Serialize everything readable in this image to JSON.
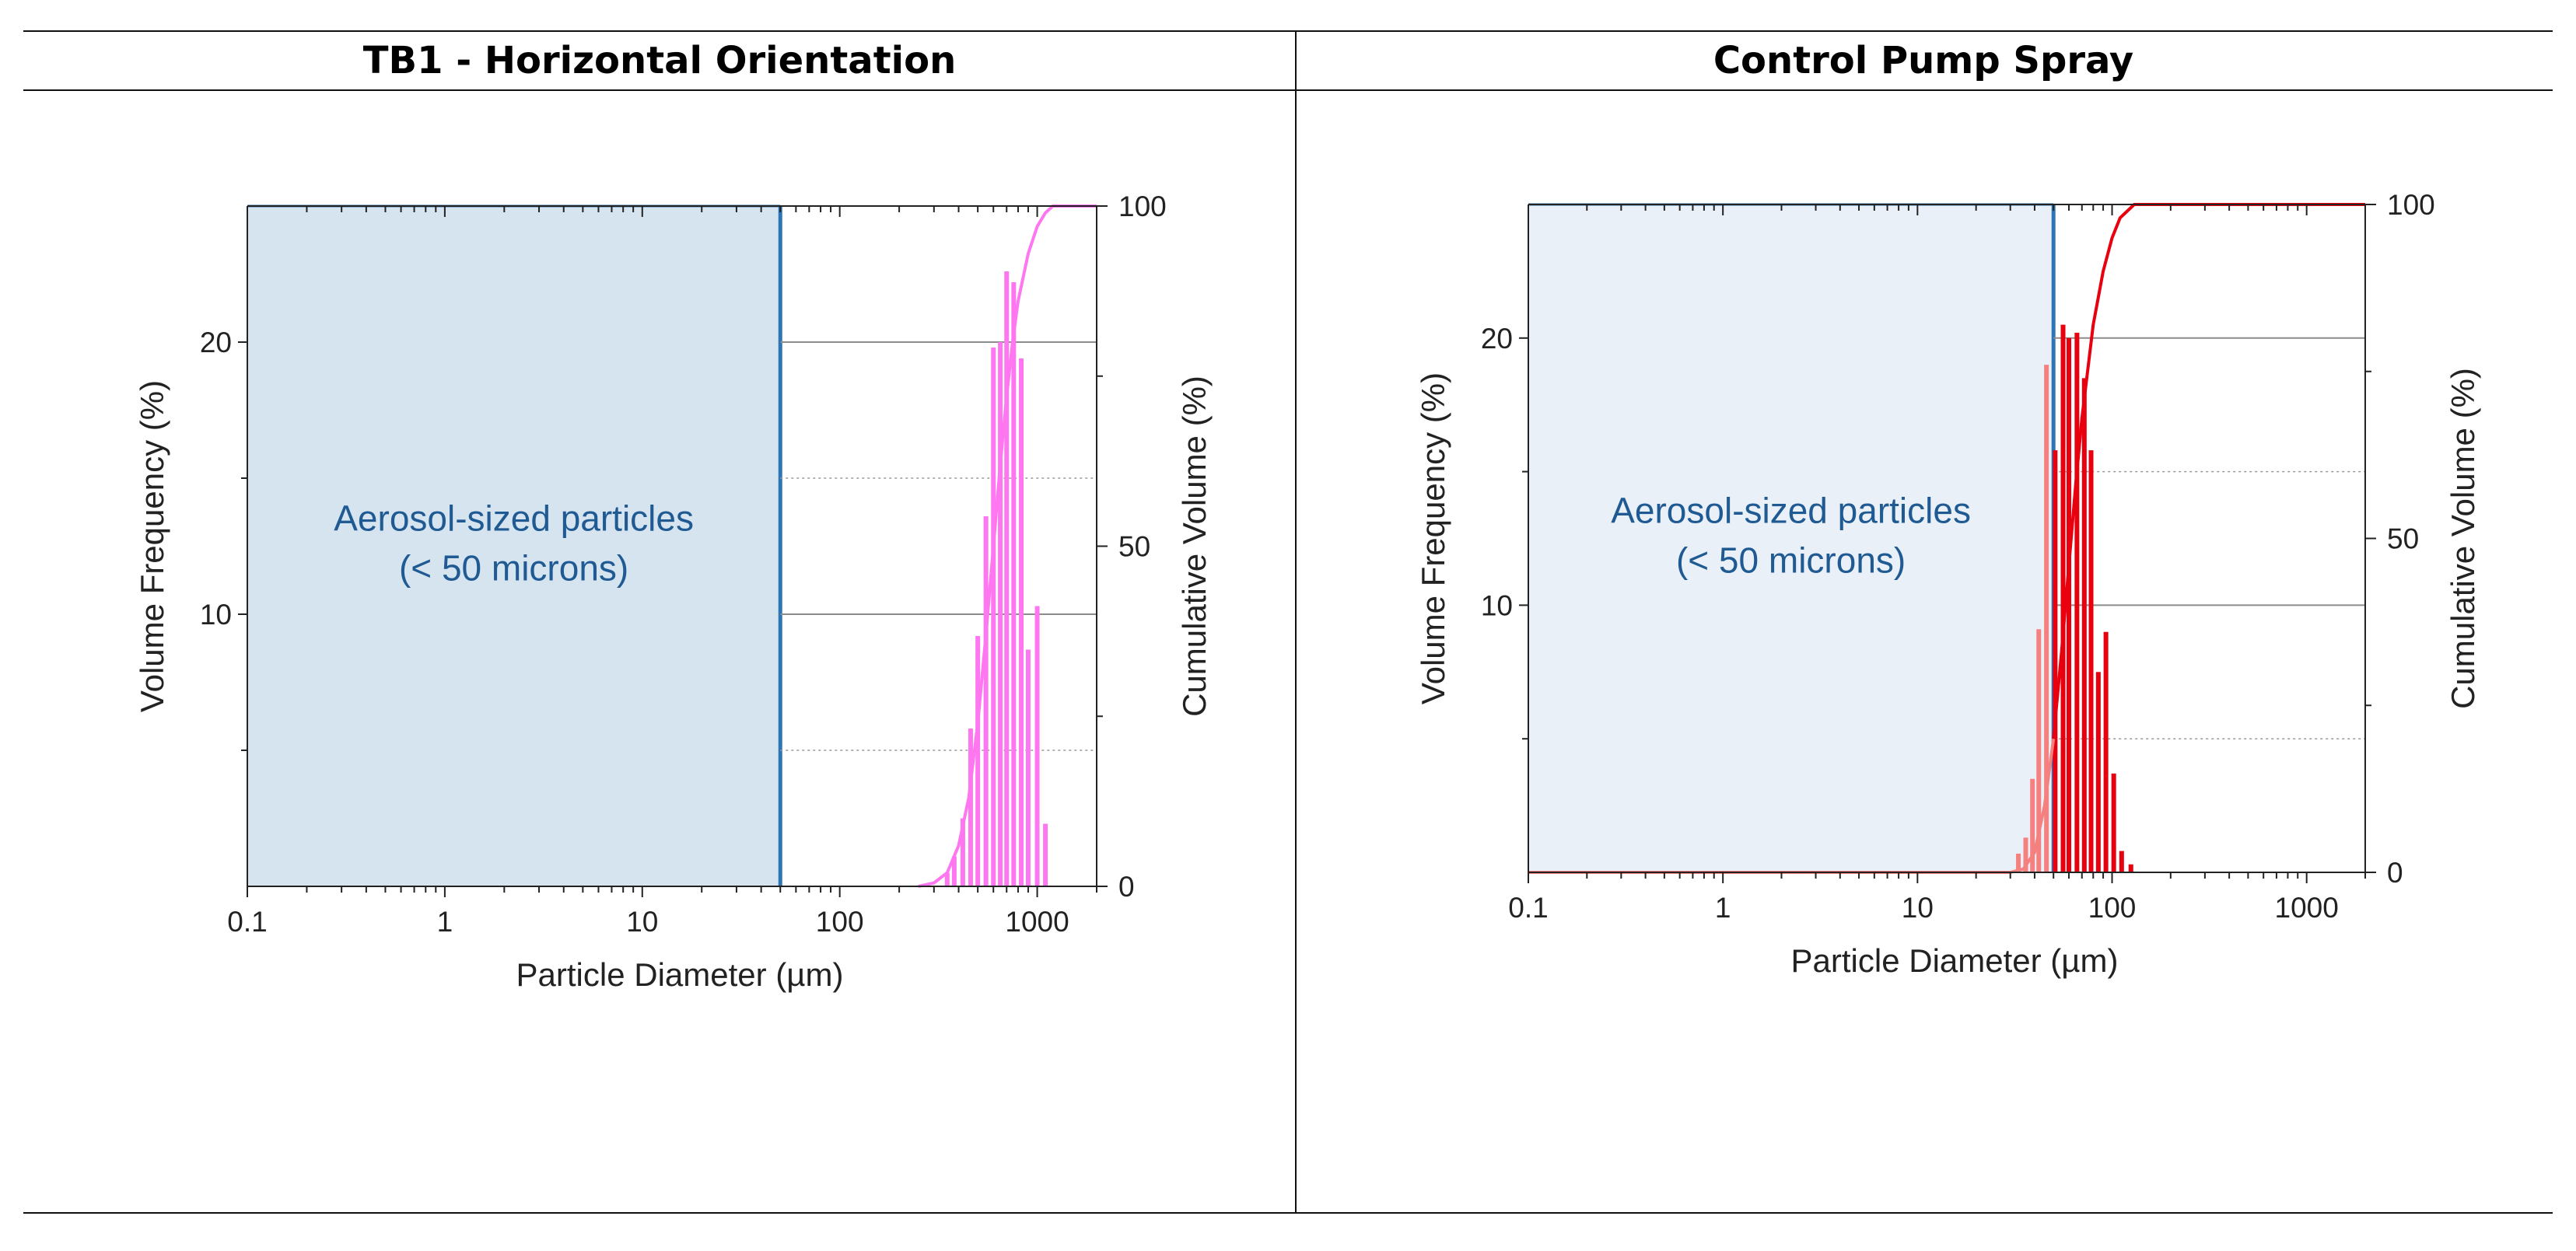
{
  "table": {
    "headers": [
      "TB1 - Horizontal Orientation",
      "Control Pump Spray"
    ]
  },
  "chart_data": [
    {
      "type": "bar",
      "title": "TB1 - Horizontal Orientation",
      "xlabel": "Particle Diameter (µm)",
      "ylabel": "Volume Frequency (%)",
      "y2label": "Cumulative Volume (%)",
      "xscale": "log",
      "xlim": [
        0.1,
        2000
      ],
      "ylim": [
        0,
        25
      ],
      "y2lim": [
        0,
        100
      ],
      "xticks": [
        0.1,
        1,
        10,
        100,
        1000
      ],
      "xtick_labels": [
        "0.1",
        "1",
        "10",
        "100",
        "1000"
      ],
      "yticks": [
        10,
        20
      ],
      "yticks_minor": [
        5,
        15
      ],
      "y2ticks": [
        0,
        50,
        100
      ],
      "y2tick_labels": [
        "0",
        "50",
        "100"
      ],
      "shaded_region": {
        "x_from": 0.1,
        "x_to": 50,
        "color": "#d6e4f0",
        "edge": "#2e75b6",
        "label_lines": [
          "Aerosol-sized particles",
          "(< 50 microns)"
        ]
      },
      "series": [
        {
          "name": "Volume Frequency",
          "color": "#ff77f0",
          "x": [
            350,
            380,
            420,
            460,
            500,
            550,
            600,
            650,
            700,
            760,
            830,
            900,
            1000,
            1100
          ],
          "values": [
            0.5,
            1.1,
            2.5,
            5.8,
            9.2,
            13.6,
            19.8,
            20.0,
            22.6,
            22.2,
            19.4,
            8.7,
            10.3,
            2.3
          ]
        },
        {
          "name": "Cumulative Volume",
          "axis": "right",
          "color": "#ff77f0",
          "x": [
            250,
            300,
            350,
            400,
            450,
            500,
            550,
            600,
            650,
            700,
            750,
            800,
            900,
            1000,
            1100,
            1200,
            1500,
            2000
          ],
          "values": [
            0,
            0.5,
            2,
            6,
            13,
            24,
            37,
            50,
            62,
            72,
            80,
            86,
            93,
            97,
            99,
            100,
            100,
            100
          ]
        }
      ]
    },
    {
      "type": "bar",
      "title": "Control Pump Spray",
      "xlabel": "Particle Diameter (µm)",
      "ylabel": "Volume Frequency (%)",
      "y2label": "Cumulative Volume (%)",
      "xscale": "log",
      "xlim": [
        0.1,
        2000
      ],
      "ylim": [
        0,
        25
      ],
      "y2lim": [
        0,
        100
      ],
      "xticks": [
        0.1,
        1,
        10,
        100,
        1000
      ],
      "xtick_labels": [
        "0.1",
        "1",
        "10",
        "100",
        "1000"
      ],
      "yticks": [
        10,
        20
      ],
      "yticks_minor": [
        5,
        15
      ],
      "y2ticks": [
        0,
        50,
        100
      ],
      "y2tick_labels": [
        "0",
        "50",
        "100"
      ],
      "shaded_region": {
        "x_from": 0.1,
        "x_to": 50,
        "color": "#eaf0f8",
        "edge": "#2e75b6",
        "label_lines": [
          "Aerosol-sized particles",
          "(< 50 microns)"
        ]
      },
      "series": [
        {
          "name": "Volume Frequency",
          "color": "#e8000f",
          "x": [
            33,
            36,
            39,
            42,
            46,
            51,
            56,
            60,
            66,
            72,
            78,
            85,
            93,
            102,
            112,
            125
          ],
          "values": [
            0.7,
            1.3,
            3.5,
            9.1,
            19.0,
            15.8,
            20.5,
            20.0,
            20.2,
            18.5,
            15.8,
            7.5,
            9.0,
            3.7,
            0.8,
            0.3
          ],
          "lightened_below": 50,
          "light_color": "#f4807f"
        },
        {
          "name": "Cumulative Volume",
          "axis": "right",
          "color": "#e8000f",
          "x": [
            0.1,
            20,
            30,
            35,
            40,
            45,
            50,
            55,
            60,
            65,
            70,
            80,
            90,
            100,
            110,
            130,
            150,
            200,
            500,
            2000
          ],
          "values": [
            0,
            0,
            0,
            0.5,
            3,
            10,
            20,
            33,
            46,
            58,
            68,
            82,
            90,
            95,
            98,
            100,
            100,
            100,
            100,
            100
          ],
          "lightened_below": 50,
          "light_color": "#f4807f"
        }
      ]
    }
  ]
}
